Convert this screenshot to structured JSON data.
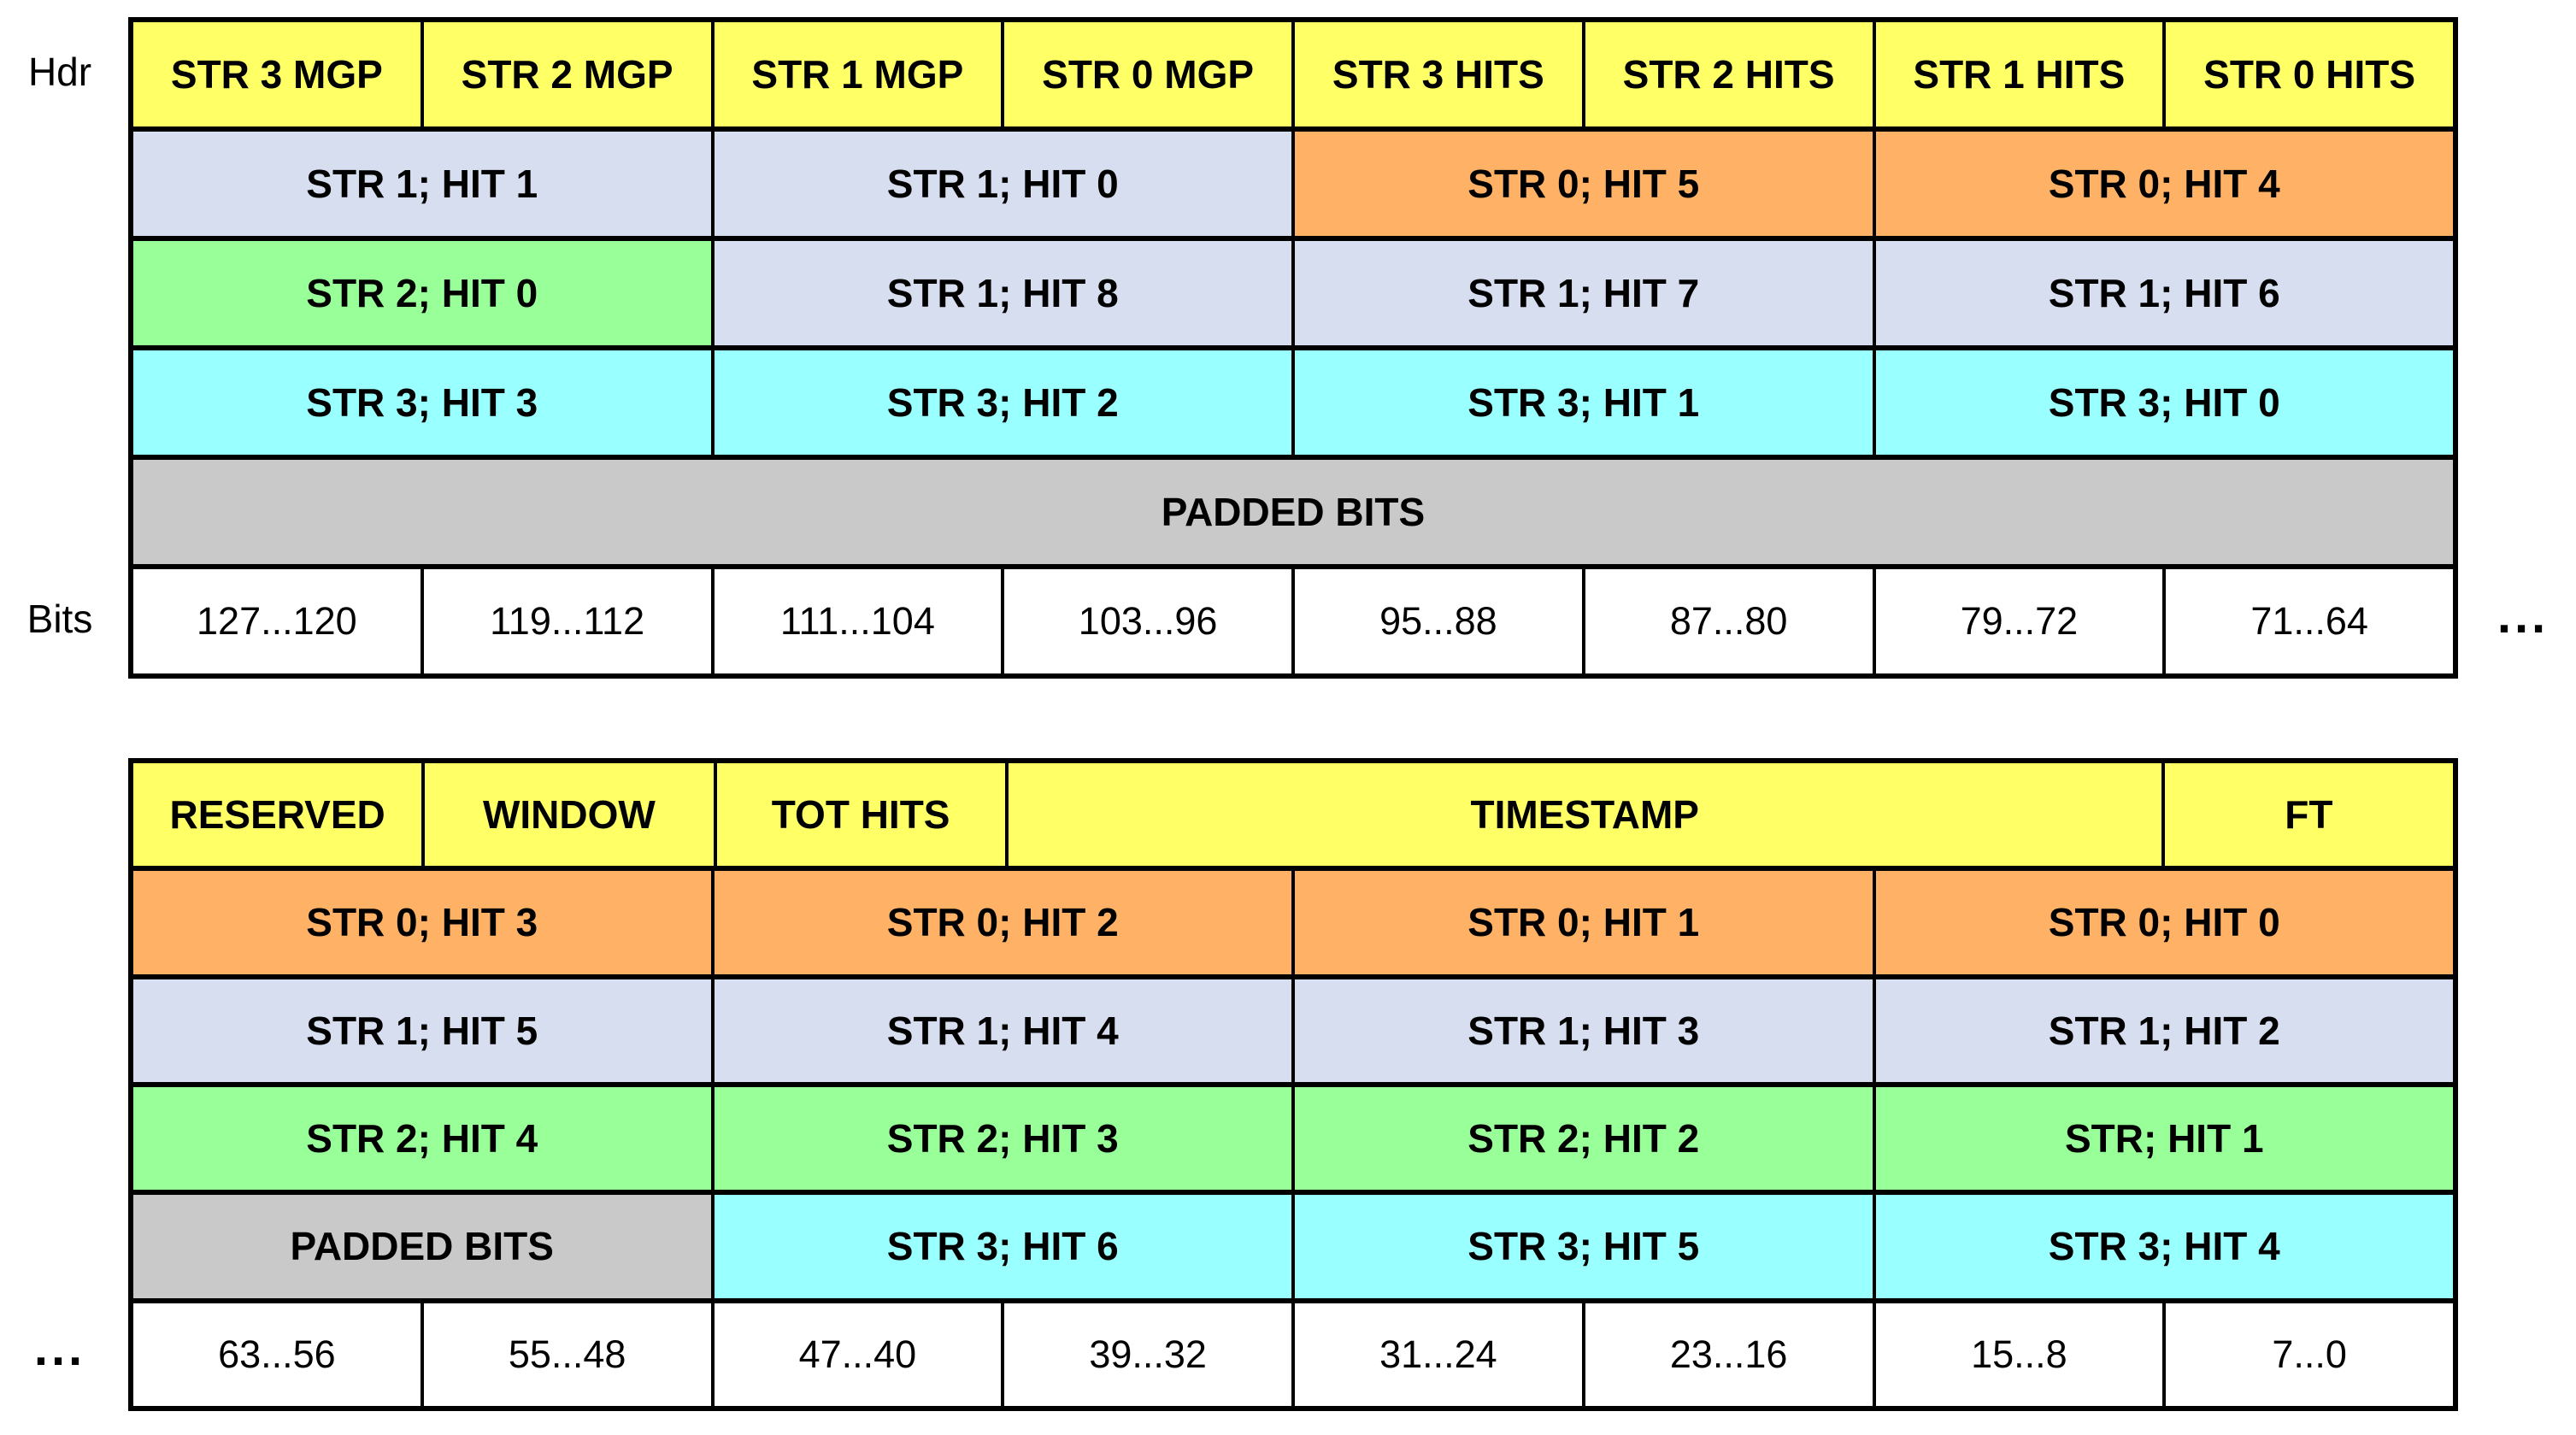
{
  "labels": {
    "hdr": "Hdr",
    "bits": "Bits",
    "ellipsis_top_right": "...",
    "ellipsis_bottom_left": "..."
  },
  "colors": {
    "yellow": "#FFFF66",
    "orange": "#FFB266",
    "blue": "#D6DEF0",
    "green": "#99FF99",
    "cyan": "#99FFFF",
    "gray": "#C9C9C9",
    "white": "#FFFFFF",
    "border": "#000000"
  },
  "tables": [
    {
      "name": "word1",
      "rows": [
        {
          "cells": [
            {
              "label": "STR 3 MGP",
              "color": "yellow",
              "span": 1
            },
            {
              "label": "STR 2 MGP",
              "color": "yellow",
              "span": 1
            },
            {
              "label": "STR 1 MGP",
              "color": "yellow",
              "span": 1
            },
            {
              "label": "STR 0 MGP",
              "color": "yellow",
              "span": 1
            },
            {
              "label": "STR 3 HITS",
              "color": "yellow",
              "span": 1
            },
            {
              "label": "STR 2 HITS",
              "color": "yellow",
              "span": 1
            },
            {
              "label": "STR 1 HITS",
              "color": "yellow",
              "span": 1
            },
            {
              "label": "STR 0 HITS",
              "color": "yellow",
              "span": 1
            }
          ]
        },
        {
          "cells": [
            {
              "label": "STR 1; HIT 1",
              "color": "blue",
              "span": 2
            },
            {
              "label": "STR 1; HIT 0",
              "color": "blue",
              "span": 2
            },
            {
              "label": "STR 0; HIT 5",
              "color": "orange",
              "span": 2
            },
            {
              "label": "STR 0; HIT 4",
              "color": "orange",
              "span": 2
            }
          ]
        },
        {
          "cells": [
            {
              "label": "STR 2; HIT 0",
              "color": "green",
              "span": 2
            },
            {
              "label": "STR 1; HIT 8",
              "color": "blue",
              "span": 2
            },
            {
              "label": "STR 1; HIT 7",
              "color": "blue",
              "span": 2
            },
            {
              "label": "STR 1; HIT 6",
              "color": "blue",
              "span": 2
            }
          ]
        },
        {
          "cells": [
            {
              "label": "STR 3; HIT 3",
              "color": "cyan",
              "span": 2
            },
            {
              "label": "STR 3; HIT 2",
              "color": "cyan",
              "span": 2
            },
            {
              "label": "STR 3; HIT 1",
              "color": "cyan",
              "span": 2
            },
            {
              "label": "STR 3; HIT 0",
              "color": "cyan",
              "span": 2
            }
          ]
        },
        {
          "cells": [
            {
              "label": "PADDED BITS",
              "color": "gray",
              "span": 8
            }
          ]
        },
        {
          "cells": [
            {
              "label": "127...120",
              "color": "white",
              "span": 1,
              "kind": "bits"
            },
            {
              "label": "119...112",
              "color": "white",
              "span": 1,
              "kind": "bits"
            },
            {
              "label": "111...104",
              "color": "white",
              "span": 1,
              "kind": "bits"
            },
            {
              "label": "103...96",
              "color": "white",
              "span": 1,
              "kind": "bits"
            },
            {
              "label": "95...88",
              "color": "white",
              "span": 1,
              "kind": "bits"
            },
            {
              "label": "87...80",
              "color": "white",
              "span": 1,
              "kind": "bits"
            },
            {
              "label": "79...72",
              "color": "white",
              "span": 1,
              "kind": "bits"
            },
            {
              "label": "71...64",
              "color": "white",
              "span": 1,
              "kind": "bits"
            }
          ]
        }
      ]
    },
    {
      "name": "word0",
      "rows": [
        {
          "cells": [
            {
              "label": "RESERVED",
              "color": "yellow",
              "span": 1
            },
            {
              "label": "WINDOW",
              "color": "yellow",
              "span": 1
            },
            {
              "label": "TOT HITS",
              "color": "yellow",
              "span": 1
            },
            {
              "label": "TIMESTAMP",
              "color": "yellow",
              "span": 4
            },
            {
              "label": "FT",
              "color": "yellow",
              "span": 1
            }
          ]
        },
        {
          "cells": [
            {
              "label": "STR 0; HIT 3",
              "color": "orange",
              "span": 2
            },
            {
              "label": "STR 0; HIT 2",
              "color": "orange",
              "span": 2
            },
            {
              "label": "STR 0; HIT 1",
              "color": "orange",
              "span": 2
            },
            {
              "label": "STR 0; HIT 0",
              "color": "orange",
              "span": 2
            }
          ]
        },
        {
          "cells": [
            {
              "label": "STR 1; HIT 5",
              "color": "blue",
              "span": 2
            },
            {
              "label": "STR 1; HIT 4",
              "color": "blue",
              "span": 2
            },
            {
              "label": "STR 1; HIT 3",
              "color": "blue",
              "span": 2
            },
            {
              "label": "STR 1; HIT 2",
              "color": "blue",
              "span": 2
            }
          ]
        },
        {
          "cells": [
            {
              "label": "STR 2; HIT 4",
              "color": "green",
              "span": 2
            },
            {
              "label": "STR 2; HIT 3",
              "color": "green",
              "span": 2
            },
            {
              "label": "STR 2; HIT 2",
              "color": "green",
              "span": 2
            },
            {
              "label": "STR; HIT 1",
              "color": "green",
              "span": 2
            }
          ]
        },
        {
          "cells": [
            {
              "label": "PADDED BITS",
              "color": "gray",
              "span": 2
            },
            {
              "label": "STR 3; HIT 6",
              "color": "cyan",
              "span": 2
            },
            {
              "label": "STR 3; HIT 5",
              "color": "cyan",
              "span": 2
            },
            {
              "label": "STR 3; HIT 4",
              "color": "cyan",
              "span": 2
            }
          ]
        },
        {
          "cells": [
            {
              "label": "63...56",
              "color": "white",
              "span": 1,
              "kind": "bits"
            },
            {
              "label": "55...48",
              "color": "white",
              "span": 1,
              "kind": "bits"
            },
            {
              "label": "47...40",
              "color": "white",
              "span": 1,
              "kind": "bits"
            },
            {
              "label": "39...32",
              "color": "white",
              "span": 1,
              "kind": "bits"
            },
            {
              "label": "31...24",
              "color": "white",
              "span": 1,
              "kind": "bits"
            },
            {
              "label": "23...16",
              "color": "white",
              "span": 1,
              "kind": "bits"
            },
            {
              "label": "15...8",
              "color": "white",
              "span": 1,
              "kind": "bits"
            },
            {
              "label": "7...0",
              "color": "white",
              "span": 1,
              "kind": "bits"
            }
          ]
        }
      ]
    }
  ]
}
